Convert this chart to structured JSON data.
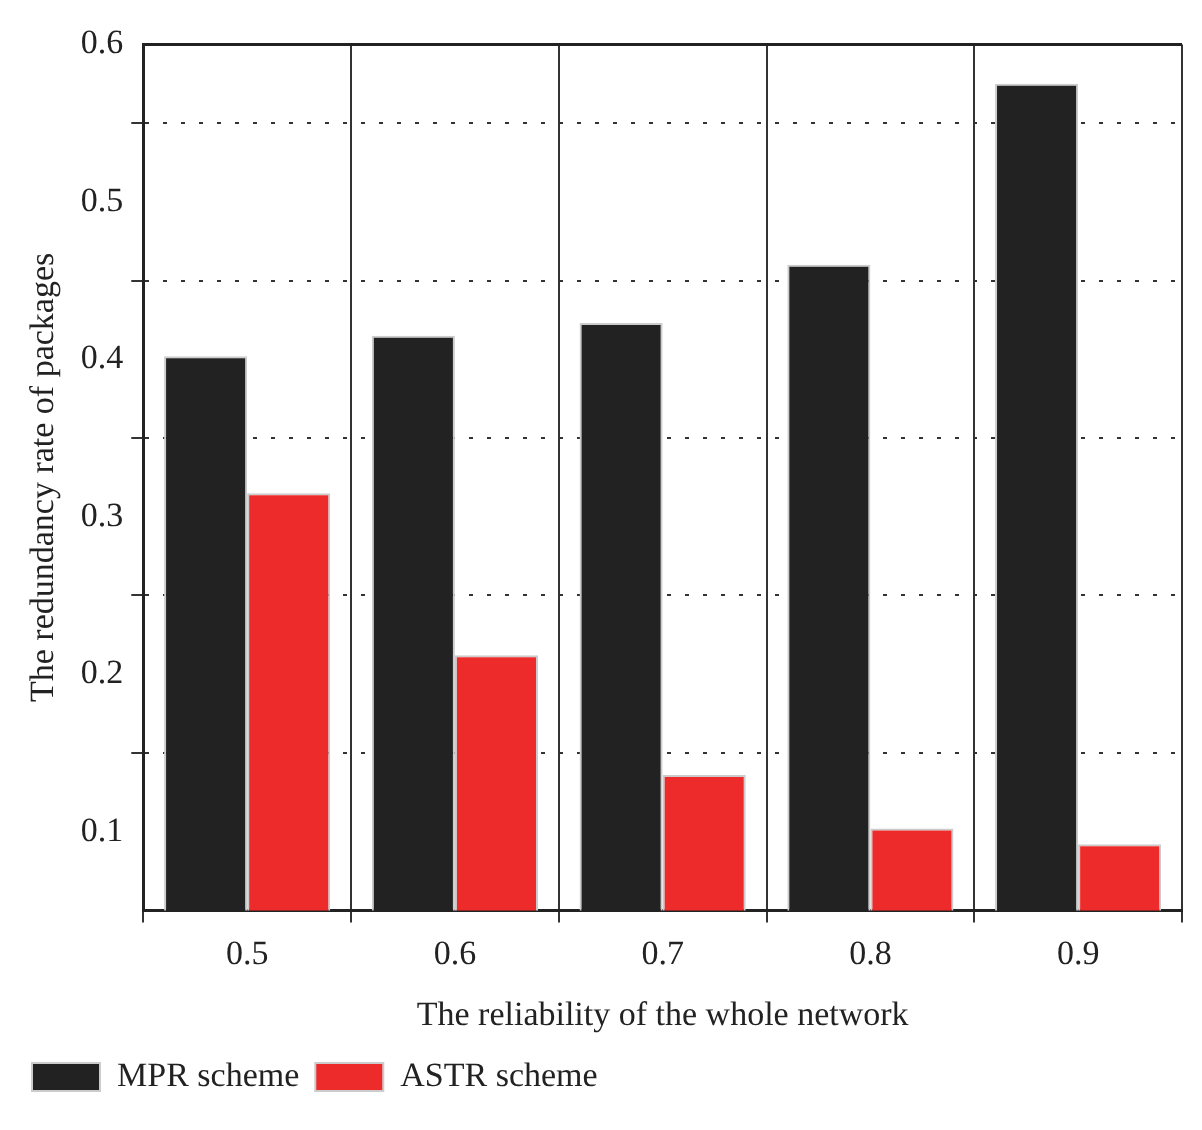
{
  "chart_data": {
    "type": "bar",
    "xlabel": "The reliability of the whole network",
    "ylabel": "The redundancy rate of packages",
    "categories": [
      "0.5",
      "0.6",
      "0.7",
      "0.8",
      "0.9"
    ],
    "series": [
      {
        "name": "MPR scheme",
        "color": "#222222",
        "values": [
          0.402,
          0.415,
          0.423,
          0.46,
          0.575
        ]
      },
      {
        "name": "ASTR scheme",
        "color": "#ee2b2b",
        "values": [
          0.315,
          0.212,
          0.136,
          0.102,
          0.092
        ]
      }
    ],
    "ylim": [
      0.05,
      0.6
    ],
    "yticks": [
      0.1,
      {
        "value": 0.15,
        "label": null
      },
      0.2,
      {
        "value": 0.25,
        "label": null
      },
      0.3,
      {
        "value": 0.35,
        "label": null
      },
      0.4,
      {
        "value": 0.45,
        "label": null
      },
      0.5,
      {
        "value": 0.55,
        "label": null
      },
      0.6
    ],
    "grid": true,
    "legend": "bottom left"
  }
}
